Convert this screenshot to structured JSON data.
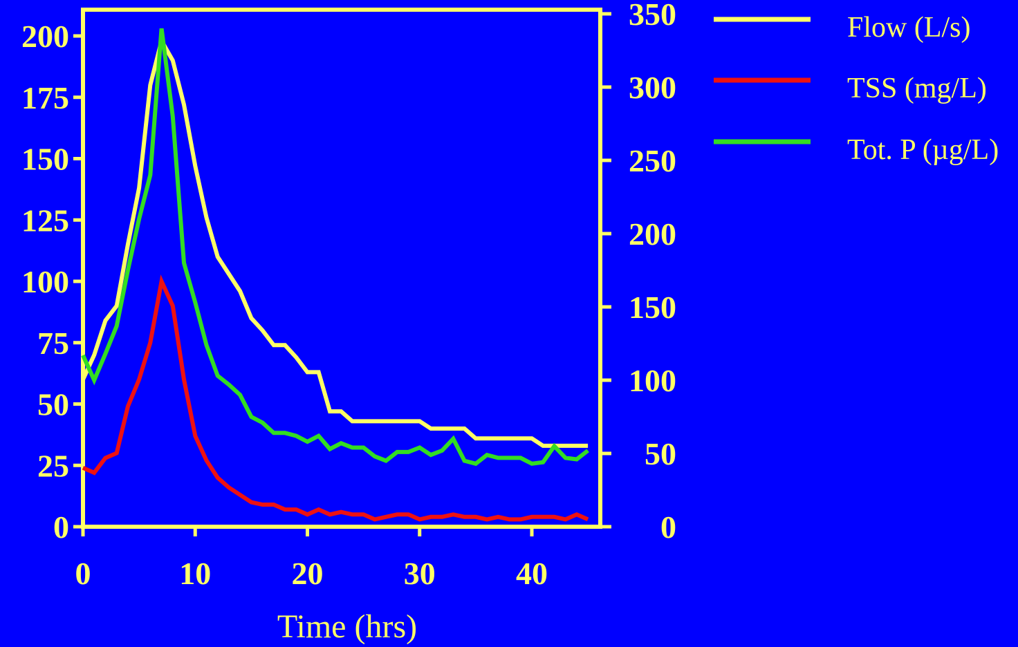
{
  "colors": {
    "background": "#0000FF",
    "axis": "#FFFF66",
    "tick_text": "#FFFF66",
    "legend_text": "#FFFF66"
  },
  "chart_data": {
    "type": "line",
    "title": "",
    "xlabel": "Time (hrs)",
    "ylabel_left": "",
    "ylabel_right": "",
    "xlim": [
      0,
      46
    ],
    "ylim_left": [
      0,
      210
    ],
    "ylim_right": [
      0,
      350
    ],
    "x_ticks": [
      0,
      10,
      20,
      30,
      40
    ],
    "y_left_ticks": [
      0,
      25,
      50,
      75,
      100,
      125,
      150,
      175,
      200
    ],
    "y_right_ticks": [
      0,
      50,
      100,
      150,
      200,
      250,
      300,
      350
    ],
    "grid": false,
    "legend_position": "right",
    "series": [
      {
        "name": "Flow (L/s)",
        "color": "#FFFF66",
        "axis": "left",
        "points": [
          [
            0,
            60
          ],
          [
            1,
            70
          ],
          [
            2,
            84
          ],
          [
            3,
            90
          ],
          [
            4,
            115
          ],
          [
            5,
            138
          ],
          [
            6,
            180
          ],
          [
            7,
            198
          ],
          [
            8,
            190
          ],
          [
            9,
            172
          ],
          [
            10,
            147
          ],
          [
            11,
            126
          ],
          [
            12,
            110
          ],
          [
            13,
            103
          ],
          [
            14,
            96
          ],
          [
            15,
            85
          ],
          [
            16,
            80
          ],
          [
            17,
            74
          ],
          [
            18,
            74
          ],
          [
            19,
            69
          ],
          [
            20,
            63
          ],
          [
            21,
            63
          ],
          [
            22,
            47
          ],
          [
            23,
            47
          ],
          [
            24,
            43
          ],
          [
            25,
            43
          ],
          [
            26,
            43
          ],
          [
            27,
            43
          ],
          [
            28,
            43
          ],
          [
            29,
            43
          ],
          [
            30,
            43
          ],
          [
            31,
            40
          ],
          [
            32,
            40
          ],
          [
            33,
            40
          ],
          [
            34,
            40
          ],
          [
            35,
            36
          ],
          [
            36,
            36
          ],
          [
            37,
            36
          ],
          [
            38,
            36
          ],
          [
            39,
            36
          ],
          [
            40,
            36
          ],
          [
            41,
            33
          ],
          [
            42,
            33
          ],
          [
            43,
            33
          ],
          [
            44,
            33
          ],
          [
            45,
            33
          ]
        ]
      },
      {
        "name": "TSS (mg/L)",
        "color": "#EE1111",
        "axis": "left",
        "points": [
          [
            0,
            24
          ],
          [
            1,
            22
          ],
          [
            2,
            28
          ],
          [
            3,
            30
          ],
          [
            4,
            49
          ],
          [
            5,
            60
          ],
          [
            6,
            75
          ],
          [
            7,
            100
          ],
          [
            8,
            90
          ],
          [
            9,
            60
          ],
          [
            10,
            37
          ],
          [
            11,
            27
          ],
          [
            12,
            20
          ],
          [
            13,
            16
          ],
          [
            14,
            13
          ],
          [
            15,
            10
          ],
          [
            16,
            9
          ],
          [
            17,
            9
          ],
          [
            18,
            7
          ],
          [
            19,
            7
          ],
          [
            20,
            5
          ],
          [
            21,
            7
          ],
          [
            22,
            5
          ],
          [
            23,
            6
          ],
          [
            24,
            5
          ],
          [
            25,
            5
          ],
          [
            26,
            3
          ],
          [
            27,
            4
          ],
          [
            28,
            5
          ],
          [
            29,
            5
          ],
          [
            30,
            3
          ],
          [
            31,
            4
          ],
          [
            32,
            4
          ],
          [
            33,
            5
          ],
          [
            34,
            4
          ],
          [
            35,
            4
          ],
          [
            36,
            3
          ],
          [
            37,
            4
          ],
          [
            38,
            3
          ],
          [
            39,
            3
          ],
          [
            40,
            4
          ],
          [
            41,
            4
          ],
          [
            42,
            4
          ],
          [
            43,
            3
          ],
          [
            44,
            5
          ],
          [
            45,
            3
          ]
        ]
      },
      {
        "name": "Tot. P (µg/L)",
        "color": "#33DD22",
        "axis": "right",
        "points": [
          [
            0,
            117
          ],
          [
            1,
            100
          ],
          [
            2,
            118
          ],
          [
            3,
            137
          ],
          [
            4,
            175
          ],
          [
            5,
            210
          ],
          [
            6,
            240
          ],
          [
            7,
            340
          ],
          [
            8,
            280
          ],
          [
            9,
            180
          ],
          [
            10,
            153
          ],
          [
            11,
            124
          ],
          [
            12,
            103
          ],
          [
            13,
            97
          ],
          [
            14,
            90
          ],
          [
            15,
            75
          ],
          [
            16,
            71
          ],
          [
            17,
            64
          ],
          [
            18,
            64
          ],
          [
            19,
            62
          ],
          [
            20,
            58
          ],
          [
            21,
            62
          ],
          [
            22,
            53
          ],
          [
            23,
            57
          ],
          [
            24,
            54
          ],
          [
            25,
            54
          ],
          [
            26,
            48
          ],
          [
            27,
            45
          ],
          [
            28,
            51
          ],
          [
            29,
            51
          ],
          [
            30,
            54
          ],
          [
            31,
            49
          ],
          [
            32,
            52
          ],
          [
            33,
            60
          ],
          [
            34,
            45
          ],
          [
            35,
            43
          ],
          [
            36,
            49
          ],
          [
            37,
            47
          ],
          [
            38,
            47
          ],
          [
            39,
            47
          ],
          [
            40,
            43
          ],
          [
            41,
            44
          ],
          [
            42,
            55
          ],
          [
            43,
            47
          ],
          [
            44,
            46
          ],
          [
            45,
            52
          ]
        ]
      }
    ]
  }
}
